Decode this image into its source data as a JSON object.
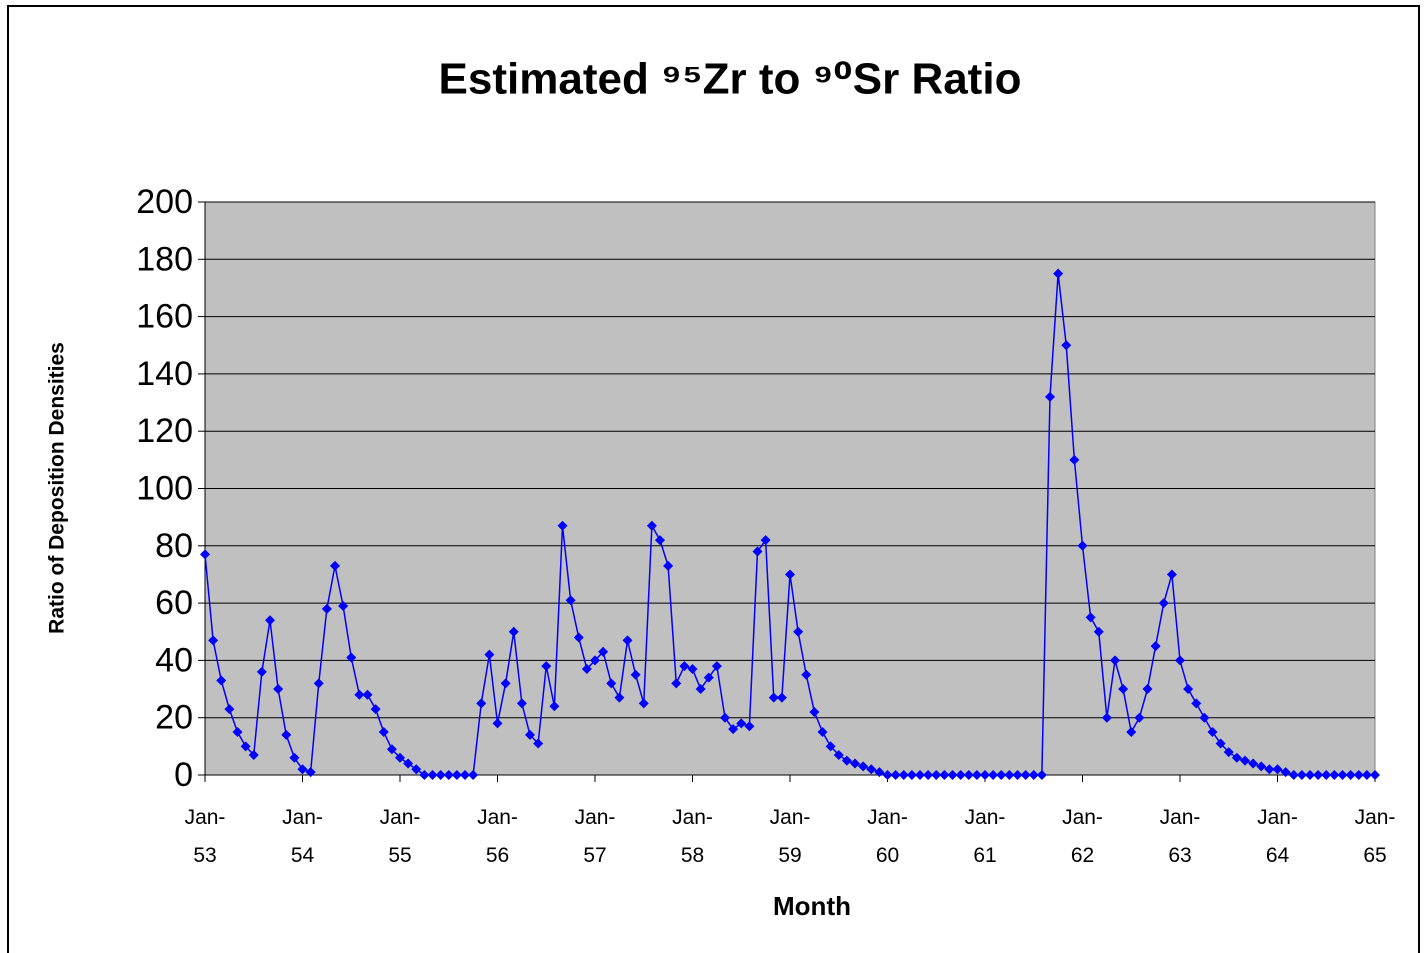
{
  "chart_data": {
    "type": "line",
    "title": "Estimated ⁹⁵Zr to ⁹⁰Sr Ratio",
    "x_label": "Month",
    "y_label": "Ratio of Deposition Densities",
    "categories": [
      "Jan-53",
      null,
      null,
      null,
      null,
      null,
      null,
      null,
      null,
      null,
      null,
      null,
      "Jan-54",
      null,
      null,
      null,
      null,
      null,
      null,
      null,
      null,
      null,
      null,
      null,
      "Jan-55",
      null,
      null,
      null,
      null,
      null,
      null,
      null,
      null,
      null,
      null,
      null,
      "Jan-56",
      null,
      null,
      null,
      null,
      null,
      null,
      null,
      null,
      null,
      null,
      null,
      "Jan-57",
      null,
      null,
      null,
      null,
      null,
      null,
      null,
      null,
      null,
      null,
      null,
      "Jan-58",
      null,
      null,
      null,
      null,
      null,
      null,
      null,
      null,
      null,
      null,
      null,
      "Jan-59",
      null,
      null,
      null,
      null,
      null,
      null,
      null,
      null,
      null,
      null,
      null,
      "Jan-60",
      null,
      null,
      null,
      null,
      null,
      null,
      null,
      null,
      null,
      null,
      null,
      "Jan-61",
      null,
      null,
      null,
      null,
      null,
      null,
      null,
      null,
      null,
      null,
      null,
      "Jan-62",
      null,
      null,
      null,
      null,
      null,
      null,
      null,
      null,
      null,
      null,
      null,
      "Jan-63",
      null,
      null,
      null,
      null,
      null,
      null,
      null,
      null,
      null,
      null,
      null,
      "Jan-64",
      null,
      null,
      null,
      null,
      null,
      null,
      null,
      null,
      null,
      null,
      null,
      "Jan-65"
    ],
    "series": [
      {
        "color": "#0000ff",
        "values": [
          77,
          47,
          33,
          23,
          15,
          10,
          7,
          36,
          54,
          30,
          14,
          6,
          2,
          1,
          32,
          58,
          73,
          59,
          41,
          28,
          28,
          23,
          15,
          9,
          6,
          4,
          2,
          0,
          0,
          0,
          0,
          0,
          0,
          0,
          25,
          42,
          18,
          32,
          50,
          25,
          14,
          11,
          38,
          24,
          87,
          61,
          48,
          37,
          40,
          43,
          32,
          27,
          47,
          35,
          25,
          87,
          82,
          73,
          32,
          38,
          37,
          30,
          34,
          38,
          20,
          16,
          18,
          17,
          78,
          82,
          27,
          27,
          70,
          50,
          35,
          22,
          15,
          10,
          7,
          5,
          4,
          3,
          2,
          1,
          0,
          0,
          0,
          0,
          0,
          0,
          0,
          0,
          0,
          0,
          0,
          0,
          0,
          0,
          0,
          0,
          0,
          0,
          0,
          0,
          132,
          175,
          150,
          110,
          80,
          55,
          50,
          20,
          40,
          30,
          15,
          20,
          30,
          45,
          60,
          70,
          40,
          30,
          25,
          20,
          15,
          11,
          8,
          6,
          5,
          4,
          3,
          2,
          2,
          1,
          0,
          0,
          0,
          0,
          0,
          0,
          0,
          0,
          0,
          0,
          0
        ]
      }
    ],
    "ylim": [
      0,
      200
    ],
    "yticks": [
      0,
      20,
      40,
      60,
      80,
      100,
      120,
      140,
      160,
      180,
      200
    ],
    "grid": true,
    "plot_background": "#c0c0c0"
  }
}
